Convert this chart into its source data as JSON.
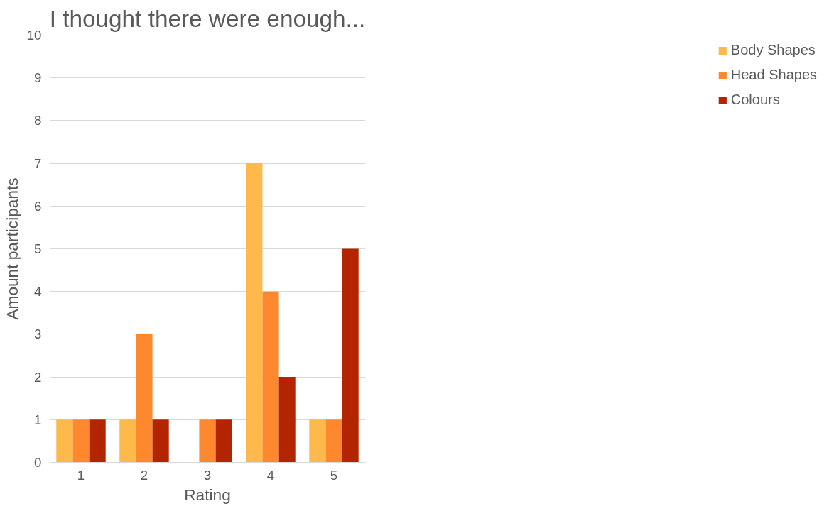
{
  "chart_data": {
    "type": "bar",
    "title": "I thought there were enough...",
    "xlabel": "Rating",
    "ylabel": "Amount participants",
    "categories": [
      "1",
      "2",
      "3",
      "4",
      "5"
    ],
    "series": [
      {
        "name": "Body Shapes",
        "color": "#fdb94a",
        "values": [
          1,
          1,
          0,
          7,
          1
        ]
      },
      {
        "name": "Head Shapes",
        "color": "#fd882d",
        "values": [
          1,
          3,
          1,
          4,
          1
        ]
      },
      {
        "name": "Colours",
        "color": "#b32400",
        "values": [
          1,
          1,
          1,
          2,
          5
        ]
      }
    ],
    "ylim": [
      0,
      10
    ],
    "yticks": [
      0,
      1,
      2,
      3,
      4,
      5,
      6,
      7,
      8,
      9,
      10
    ],
    "grid": "y",
    "legend": "right"
  }
}
